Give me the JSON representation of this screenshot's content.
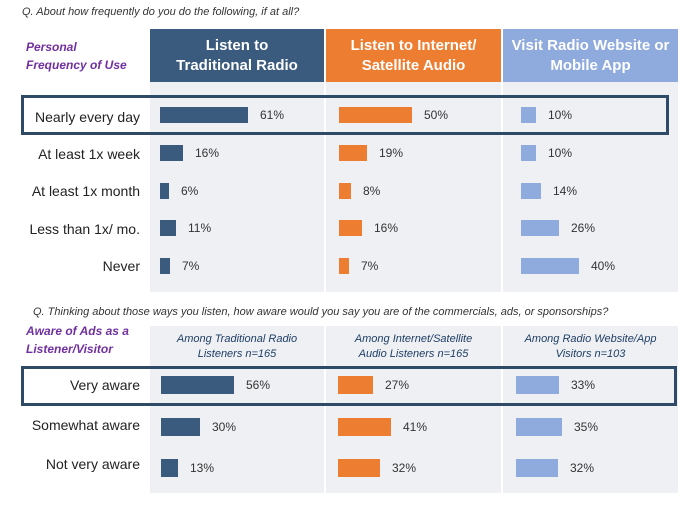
{
  "chart_data": [
    {
      "type": "bar",
      "question": "Q. About how frequently do you do the following, if at all?",
      "row_title": [
        "Personal",
        "Frequency of Use"
      ],
      "categories": [
        "Nearly every day",
        "At least 1x week",
        "At least 1x month",
        "Less than 1x/ mo.",
        "Never"
      ],
      "highlight": "Nearly every day",
      "series": [
        {
          "name": "Listen to Traditional Radio",
          "header": [
            "Listen to",
            "Traditional Radio"
          ],
          "color": "#3a5a7e",
          "header_color": "#3a5a7e",
          "values": [
            61,
            16,
            6,
            11,
            7
          ]
        },
        {
          "name": "Listen to Internet/ Satellite Audio",
          "header": [
            "Listen to Internet/",
            "Satellite Audio"
          ],
          "color": "#ed7d31",
          "header_color": "#ed7d31",
          "values": [
            50,
            19,
            8,
            16,
            7
          ]
        },
        {
          "name": "Visit Radio Website or Mobile App",
          "header": [
            "Visit Radio Website or",
            "Mobile App"
          ],
          "color": "#8faadc",
          "header_color": "#8faadc",
          "values": [
            10,
            10,
            14,
            26,
            40
          ]
        }
      ],
      "unit": "%"
    },
    {
      "type": "bar",
      "question": "Q. Thinking about those ways you listen, how aware would you say you are of the commercials, ads, or sponsorships?",
      "row_title": [
        "Aware of Ads as a",
        "Listener/Visitor"
      ],
      "categories": [
        "Very aware",
        "Somewhat aware",
        "Not very aware"
      ],
      "highlight": "Very aware",
      "series": [
        {
          "name": "Among Traditional Radio Listeners n=165",
          "header": [
            "Among Traditional  Radio",
            "Listeners  n=165"
          ],
          "color": "#3a5a7e",
          "values": [
            56,
            30,
            13
          ]
        },
        {
          "name": "Among Internet/Satellite Audio Listeners n=165",
          "header": [
            "Among Internet/Satellite",
            "Audio Listeners n=165"
          ],
          "color": "#ed7d31",
          "values": [
            27,
            41,
            32
          ]
        },
        {
          "name": "Among Radio Website/App Visitors n=103",
          "header": [
            "Among Radio Website/App",
            "Visitors n=103"
          ],
          "color": "#8faadc",
          "values": [
            33,
            35,
            32
          ]
        }
      ],
      "unit": "%"
    }
  ]
}
